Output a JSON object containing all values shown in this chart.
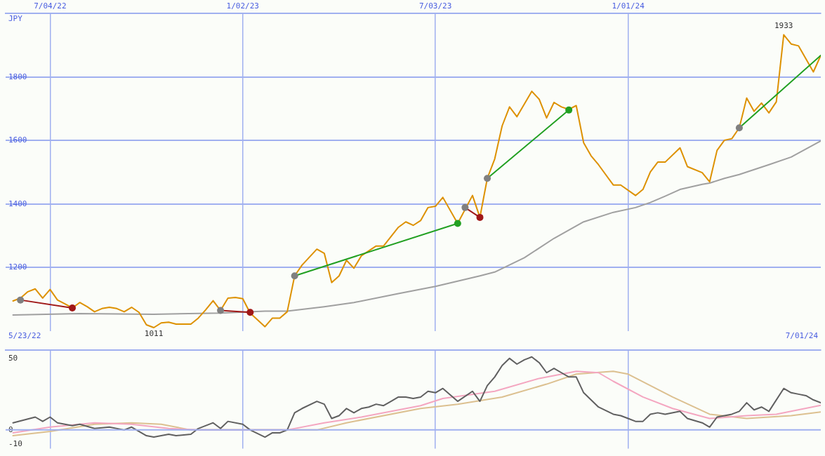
{
  "chart_data": [
    {
      "type": "line",
      "ylabel": "JPY",
      "xlim": [
        "2022-05-23",
        "2024-07-01"
      ],
      "ylim": [
        1000,
        2000
      ],
      "xticks": [
        {
          "value": "2022-07-04",
          "label": "7/04/22"
        },
        {
          "value": "2023-01-02",
          "label": "1/02/23"
        },
        {
          "value": "2023-07-03",
          "label": "7/03/23"
        },
        {
          "value": "2024-01-01",
          "label": "1/01/24"
        }
      ],
      "yticks": [
        1200,
        1400,
        1600,
        1800
      ],
      "grid": true,
      "legend": false,
      "marker": "none",
      "line_style": "solid",
      "series": [
        {
          "color": "#dd9100",
          "x": [
            "2022-05-30",
            "2022-06-06",
            "2022-06-13",
            "2022-06-20",
            "2022-06-27",
            "2022-07-04",
            "2022-07-11",
            "2022-07-18",
            "2022-07-25",
            "2022-08-01",
            "2022-08-08",
            "2022-08-15",
            "2022-08-22",
            "2022-08-29",
            "2022-09-05",
            "2022-09-12",
            "2022-09-19",
            "2022-09-26",
            "2022-10-03",
            "2022-10-10",
            "2022-10-17",
            "2022-10-24",
            "2022-10-31",
            "2022-11-07",
            "2022-11-14",
            "2022-11-21",
            "2022-11-28",
            "2022-12-05",
            "2022-12-12",
            "2022-12-19",
            "2022-12-26",
            "2023-01-02",
            "2023-01-09",
            "2023-01-23",
            "2023-01-30",
            "2023-02-06",
            "2023-02-13",
            "2023-02-20",
            "2023-02-27",
            "2023-03-13",
            "2023-03-20",
            "2023-03-27",
            "2023-04-03",
            "2023-04-10",
            "2023-04-17",
            "2023-04-24",
            "2023-05-08",
            "2023-05-15",
            "2023-05-29",
            "2023-06-05",
            "2023-06-12",
            "2023-06-19",
            "2023-06-26",
            "2023-07-03",
            "2023-07-10",
            "2023-07-24",
            "2023-08-07",
            "2023-08-14",
            "2023-08-21",
            "2023-08-28",
            "2023-09-04",
            "2023-09-11",
            "2023-09-18",
            "2023-10-02",
            "2023-10-09",
            "2023-10-16",
            "2023-10-23",
            "2023-10-30",
            "2023-11-06",
            "2023-11-13",
            "2023-11-20",
            "2023-11-27",
            "2023-12-04",
            "2023-12-18",
            "2023-12-25",
            "2024-01-08",
            "2024-01-15",
            "2024-01-22",
            "2024-01-29",
            "2024-02-05",
            "2024-02-19",
            "2024-02-26",
            "2024-03-11",
            "2024-03-18",
            "2024-03-25",
            "2024-04-01",
            "2024-04-08",
            "2024-04-15",
            "2024-04-22",
            "2024-04-29",
            "2024-05-06",
            "2024-05-13",
            "2024-05-20",
            "2024-05-27",
            "2024-06-03",
            "2024-06-10",
            "2024-06-24",
            "2024-07-01"
          ],
          "values": [
            1095,
            1104,
            1124,
            1133,
            1104,
            1131,
            1098,
            1086,
            1073,
            1090,
            1077,
            1061,
            1071,
            1075,
            1071,
            1061,
            1075,
            1059,
            1020,
            1011,
            1026,
            1028,
            1022,
            1022,
            1022,
            1041,
            1067,
            1096,
            1065,
            1104,
            1106,
            1102,
            1057,
            1014,
            1041,
            1041,
            1061,
            1174,
            1208,
            1258,
            1245,
            1153,
            1174,
            1223,
            1198,
            1237,
            1268,
            1268,
            1327,
            1344,
            1333,
            1348,
            1389,
            1393,
            1421,
            1339,
            1427,
            1358,
            1481,
            1542,
            1646,
            1706,
            1675,
            1755,
            1730,
            1671,
            1720,
            1706,
            1698,
            1710,
            1593,
            1552,
            1524,
            1460,
            1460,
            1427,
            1446,
            1501,
            1532,
            1532,
            1577,
            1518,
            1499,
            1470,
            1569,
            1601,
            1606,
            1640,
            1734,
            1692,
            1718,
            1687,
            1722,
            1933,
            1904,
            1898,
            1816,
            1868
          ]
        },
        {
          "color": "#a0a0a0",
          "x": [
            "2022-05-30",
            "2022-08-01",
            "2022-10-10",
            "2022-12-12",
            "2023-01-23",
            "2023-02-13",
            "2023-03-20",
            "2023-04-17",
            "2023-05-29",
            "2023-07-03",
            "2023-08-14",
            "2023-08-28",
            "2023-09-25",
            "2023-10-23",
            "2023-11-20",
            "2023-12-18",
            "2024-01-08",
            "2024-01-22",
            "2024-02-05",
            "2024-02-19",
            "2024-03-11",
            "2024-03-18",
            "2024-04-01",
            "2024-04-15",
            "2024-05-13",
            "2024-06-03",
            "2024-07-01"
          ],
          "values": [
            1051,
            1055,
            1053,
            1057,
            1063,
            1063,
            1077,
            1090,
            1118,
            1141,
            1174,
            1186,
            1231,
            1292,
            1344,
            1374,
            1389,
            1405,
            1425,
            1446,
            1462,
            1466,
            1481,
            1493,
            1524,
            1548,
            1599
          ]
        },
        {
          "color": "#a01818",
          "marker": "circle",
          "colors": [
            "#808080",
            "#a01818"
          ],
          "x": [
            "2022-06-06",
            "2022-07-25"
          ],
          "values": [
            1098,
            1073
          ]
        },
        {
          "color": "#a01818",
          "marker": "circle",
          "colors": [
            "#808080",
            "#a01818"
          ],
          "x": [
            "2022-12-12",
            "2023-01-09"
          ],
          "values": [
            1065,
            1059
          ]
        },
        {
          "color": "#22a022",
          "marker": "circle",
          "colors": [
            "#808080",
            "#22a022"
          ],
          "x": [
            "2023-02-20",
            "2023-07-24"
          ],
          "values": [
            1174,
            1339
          ]
        },
        {
          "color": "#a01818",
          "marker": "circle",
          "colors": [
            "#808080",
            "#a01818"
          ],
          "x": [
            "2023-07-31",
            "2023-08-14"
          ],
          "values": [
            1389,
            1358
          ]
        },
        {
          "color": "#22a022",
          "marker": "circle",
          "colors": [
            "#808080",
            "#22a022"
          ],
          "x": [
            "2023-08-21",
            "2023-11-06"
          ],
          "values": [
            1481,
            1696
          ]
        },
        {
          "color": "#22a022",
          "marker": "circle",
          "colors": [
            "#808080",
            null
          ],
          "x": [
            "2024-04-15",
            "2024-07-01"
          ],
          "values": [
            1640,
            1868
          ]
        }
      ],
      "annotations": [
        {
          "text": "1933",
          "x": "2024-05-27",
          "y": 1933
        },
        {
          "text": "1011",
          "x": "2022-10-10",
          "y": 1011
        },
        "5/23/22",
        "7/01/24"
      ]
    },
    {
      "type": "line",
      "xlim": [
        "2022-05-23",
        "2024-07-01"
      ],
      "ylim": [
        -13,
        56
      ],
      "xticks": [
        {
          "value": "2022-07-04",
          "label": null
        },
        {
          "value": "2023-01-02",
          "label": null
        },
        {
          "value": "2023-07-03",
          "label": null
        },
        {
          "value": "2024-01-01",
          "label": null
        }
      ],
      "yticks": [
        -10,
        0,
        50
      ],
      "tick_labels": "y",
      "grid": "x",
      "legend": false,
      "marker": "none",
      "line_style": "solid",
      "ref_lines": [
        {
          "axis": "y",
          "value": 0,
          "color": "#a0b0f0"
        }
      ],
      "series": [
        {
          "color": "#606060",
          "x": [
            "2022-05-30",
            "2022-06-20",
            "2022-06-27",
            "2022-07-04",
            "2022-07-11",
            "2022-07-25",
            "2022-08-01",
            "2022-08-15",
            "2022-08-29",
            "2022-09-12",
            "2022-09-19",
            "2022-10-03",
            "2022-10-10",
            "2022-10-24",
            "2022-10-31",
            "2022-11-14",
            "2022-11-21",
            "2022-12-05",
            "2022-12-12",
            "2022-12-19",
            "2023-01-02",
            "2023-01-09",
            "2023-01-23",
            "2023-01-30",
            "2023-02-06",
            "2023-02-13",
            "2023-02-20",
            "2023-02-27",
            "2023-03-13",
            "2023-03-20",
            "2023-03-27",
            "2023-04-03",
            "2023-04-10",
            "2023-04-17",
            "2023-04-24",
            "2023-05-01",
            "2023-05-08",
            "2023-05-15",
            "2023-05-22",
            "2023-05-29",
            "2023-06-05",
            "2023-06-12",
            "2023-06-19",
            "2023-06-26",
            "2023-07-03",
            "2023-07-10",
            "2023-07-24",
            "2023-08-07",
            "2023-08-14",
            "2023-08-21",
            "2023-08-28",
            "2023-09-04",
            "2023-09-11",
            "2023-09-18",
            "2023-09-25",
            "2023-10-02",
            "2023-10-09",
            "2023-10-16",
            "2023-10-23",
            "2023-10-30",
            "2023-11-06",
            "2023-11-13",
            "2023-11-20",
            "2023-11-27",
            "2023-12-04",
            "2023-12-18",
            "2023-12-25",
            "2024-01-01",
            "2024-01-08",
            "2024-01-15",
            "2024-01-22",
            "2024-01-29",
            "2024-02-05",
            "2024-02-19",
            "2024-02-26",
            "2024-03-11",
            "2024-03-18",
            "2024-03-25",
            "2024-04-01",
            "2024-04-08",
            "2024-04-15",
            "2024-04-22",
            "2024-04-29",
            "2024-05-06",
            "2024-05-13",
            "2024-05-27",
            "2024-06-03",
            "2024-06-10",
            "2024-06-17",
            "2024-06-24",
            "2024-07-01"
          ],
          "values": [
            5,
            9,
            6,
            9,
            5,
            3,
            4,
            1,
            2,
            0,
            2,
            -4,
            -5,
            -3,
            -4,
            -3,
            1,
            5,
            1,
            6,
            4,
            0,
            -5,
            -2,
            -2,
            0,
            12,
            15,
            20,
            18,
            8,
            10,
            15,
            12,
            15,
            16,
            18,
            17,
            20,
            23,
            23,
            22,
            23,
            27,
            26,
            29,
            20,
            27,
            20,
            31,
            37,
            45,
            50,
            46,
            49,
            51,
            47,
            40,
            43,
            40,
            37,
            37,
            26,
            21,
            16,
            11,
            10,
            8,
            6,
            6,
            11,
            12,
            11,
            13,
            8,
            5,
            2,
            9,
            10,
            11,
            13,
            19,
            14,
            16,
            13,
            29,
            26,
            25,
            24,
            21,
            19
          ]
        },
        {
          "color": "#f4a6c0",
          "x": [
            "2022-05-30",
            "2022-07-04",
            "2022-08-15",
            "2022-09-19",
            "2022-10-24",
            "2022-11-21",
            "2023-01-02",
            "2023-02-13",
            "2023-03-20",
            "2023-04-24",
            "2023-06-19",
            "2023-07-10",
            "2023-08-28",
            "2023-10-09",
            "2023-11-13",
            "2023-12-04",
            "2023-12-18",
            "2024-01-15",
            "2024-02-12",
            "2024-03-18",
            "2024-04-22",
            "2024-05-20",
            "2024-07-01"
          ],
          "values": [
            -2,
            2,
            5,
            4,
            1,
            0,
            0,
            0,
            5,
            9,
            17,
            22,
            27,
            36,
            41,
            40,
            34,
            23,
            15,
            8,
            10,
            11,
            17.2
          ]
        },
        {
          "color": "#dcc090",
          "x": [
            "2022-05-30",
            "2022-07-04",
            "2022-08-15",
            "2022-09-19",
            "2022-10-17",
            "2022-11-14",
            "2023-01-02",
            "2023-03-13",
            "2023-04-10",
            "2023-06-19",
            "2023-07-24",
            "2023-09-04",
            "2023-10-16",
            "2023-11-13",
            "2023-12-18",
            "2024-01-01",
            "2024-02-12",
            "2024-03-18",
            "2024-04-22",
            "2024-06-03",
            "2024-07-01"
          ],
          "values": [
            -4,
            -1,
            4,
            5,
            4,
            0,
            0,
            0,
            5,
            15,
            18,
            23,
            32,
            39,
            41,
            39,
            23,
            11,
            8,
            10,
            12.5
          ]
        }
      ]
    }
  ]
}
